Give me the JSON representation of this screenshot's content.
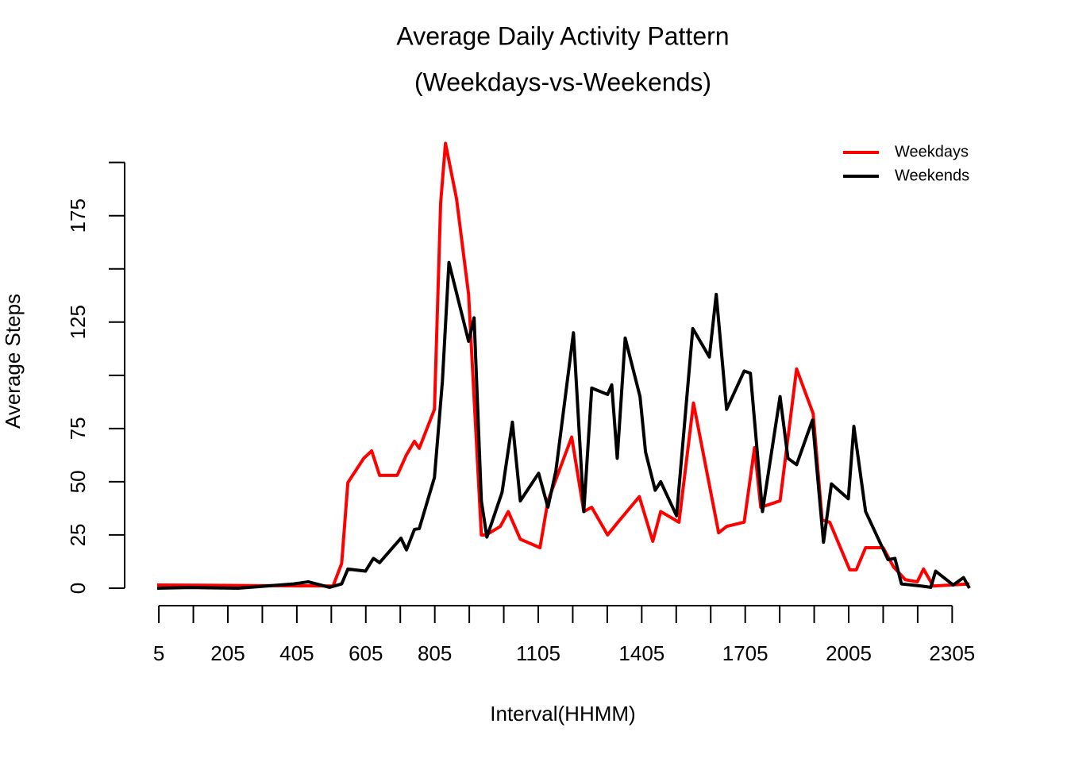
{
  "chart_data": {
    "type": "line",
    "title": "Average Daily Activity Pattern",
    "subtitle": "(Weekdays-vs-Weekends)",
    "x_label": "Interval(HHMM)",
    "y_label": "Average Steps",
    "xlim": [
      -94.2,
      2449.2
    ],
    "ylim": [
      -8.4,
      217.4
    ],
    "xticks": [
      5,
      {
        "value": 105,
        "label": null
      },
      205,
      {
        "value": 305,
        "label": null
      },
      405,
      {
        "value": 505,
        "label": null
      },
      605,
      {
        "value": 705,
        "label": null
      },
      805,
      {
        "value": 905,
        "label": null
      },
      {
        "value": 1005,
        "label": null
      },
      1105,
      {
        "value": 1205,
        "label": null
      },
      {
        "value": 1305,
        "label": null
      },
      1405,
      {
        "value": 1505,
        "label": null
      },
      {
        "value": 1605,
        "label": null
      },
      1705,
      {
        "value": 1805,
        "label": null
      },
      {
        "value": 1905,
        "label": null
      },
      2005,
      {
        "value": 2105,
        "label": null
      },
      {
        "value": 2205,
        "label": null
      },
      2305
    ],
    "yticks": [
      0,
      25,
      50,
      75,
      {
        "value": 100,
        "label": null
      },
      125,
      {
        "value": 150,
        "label": null
      },
      175,
      {
        "value": 200,
        "label": null
      }
    ],
    "legend": "top-right",
    "series": [
      {
        "name": "Weekdays",
        "color": "#ff0000",
        "x": [
          0,
          510,
          535,
          553,
          599,
          622,
          645,
          696,
          723,
          746,
          760,
          804,
          822,
          836,
          868,
          903,
          940,
          954,
          995,
          1018,
          1053,
          1110,
          1133,
          1202,
          1237,
          1260,
          1306,
          1336,
          1398,
          1437,
          1460,
          1513,
          1555,
          1628,
          1651,
          1702,
          1732,
          1750,
          1806,
          1854,
          1902,
          1928,
          1950,
          2008,
          2027,
          2054,
          2105,
          2135,
          2169,
          2204,
          2222,
          2250,
          2355
        ],
        "values": [
          1.5,
          1,
          11.6,
          49.6,
          61,
          64.5,
          53,
          53,
          62.7,
          69,
          65.7,
          84,
          181,
          209,
          183,
          138,
          25,
          25,
          29,
          36,
          23,
          19,
          41,
          71,
          36,
          38,
          25,
          31,
          43,
          22,
          36,
          31,
          87,
          26,
          29,
          31,
          66,
          38,
          41,
          103,
          82,
          32,
          31,
          8.6,
          8.6,
          19,
          19,
          10,
          4,
          3,
          9,
          1,
          2
        ]
      },
      {
        "name": "Weekends",
        "color": "#000000",
        "x": [
          0,
          97,
          235,
          396,
          438,
          500,
          535,
          553,
          604,
          627,
          645,
          707,
          723,
          746,
          760,
          804,
          827,
          846,
          903,
          919,
          940,
          956,
          1000,
          1030,
          1053,
          1106,
          1133,
          1156,
          1207,
          1237,
          1260,
          1306,
          1318,
          1334,
          1357,
          1400,
          1416,
          1444,
          1460,
          1506,
          1553,
          1601,
          1621,
          1651,
          1702,
          1720,
          1755,
          1806,
          1829,
          1854,
          1900,
          1932,
          1955,
          2004,
          2020,
          2054,
          2119,
          2139,
          2158,
          2215,
          2243,
          2257,
          2308,
          2338,
          2355
        ],
        "values": [
          0,
          0.3,
          0,
          2,
          3,
          0.4,
          2,
          9,
          8,
          14,
          12,
          23.5,
          18,
          27.6,
          28,
          52,
          97,
          153,
          116,
          127,
          41,
          24,
          45,
          78,
          41,
          54,
          38,
          55,
          120,
          36,
          94,
          91,
          95.5,
          61,
          117.5,
          90,
          64,
          46,
          50,
          34,
          122,
          108.6,
          138,
          84,
          102,
          101,
          36,
          90,
          61,
          58,
          79,
          21.6,
          49,
          42,
          76,
          36,
          13.4,
          14,
          2,
          1,
          0.4,
          8,
          1.5,
          5,
          0
        ]
      }
    ]
  }
}
